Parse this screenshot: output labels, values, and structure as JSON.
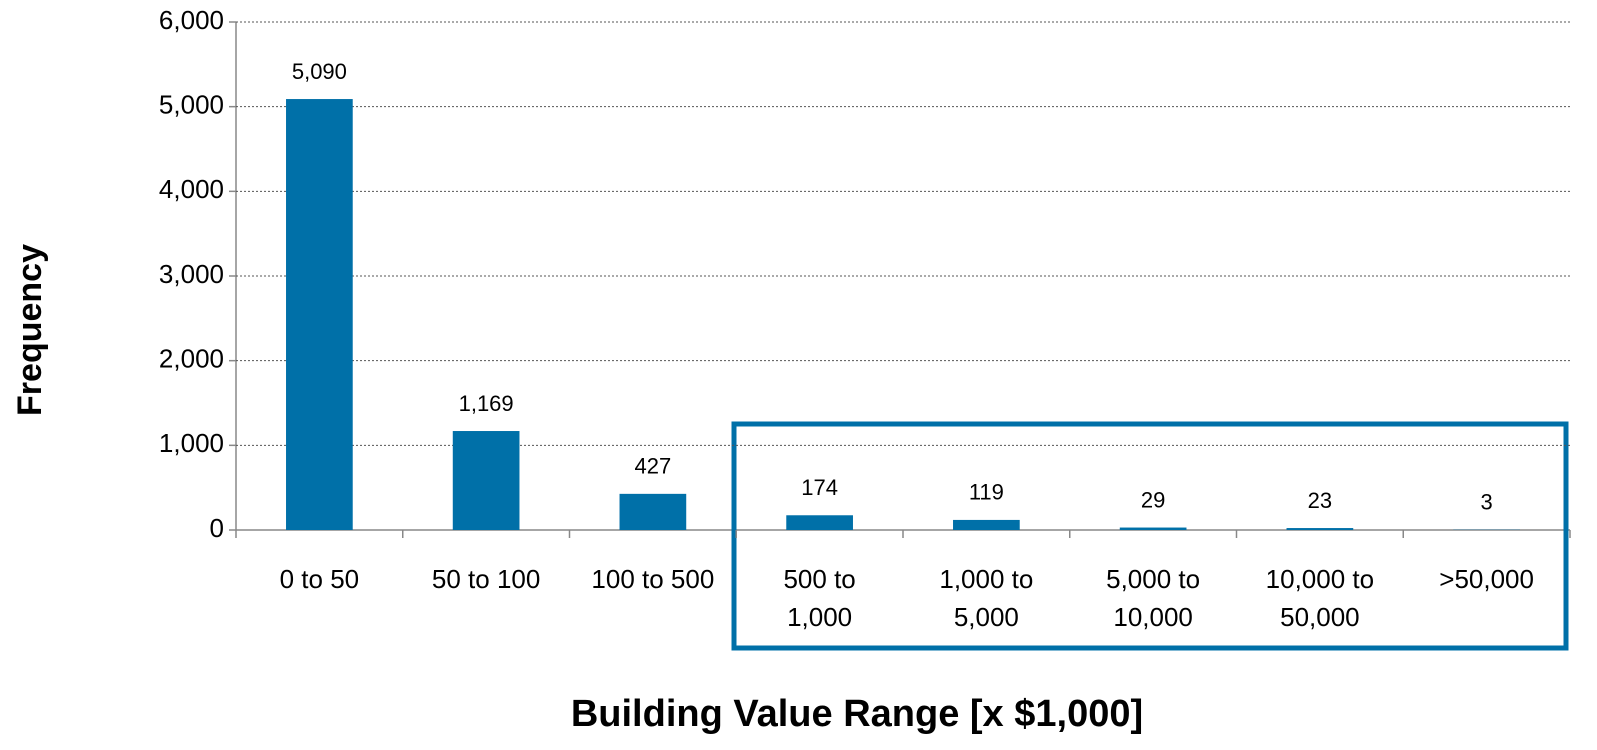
{
  "chart_data": {
    "type": "bar",
    "xlabel": "Building Value Range [x $1,000]",
    "ylabel": "Frequency",
    "categories": [
      "0 to 50",
      "50 to 100",
      "100 to 500",
      "500 to 1,000",
      "1,000 to 5,000",
      "5,000 to 10,000",
      "10,000 to 50,000",
      ">50,000"
    ],
    "values": [
      5090,
      1169,
      427,
      174,
      119,
      29,
      23,
      3
    ],
    "value_labels": [
      "5,090",
      "1,169",
      "427",
      "174",
      "119",
      "29",
      "23",
      "3"
    ],
    "color": "#0070a8",
    "ylim": [
      0,
      6000
    ],
    "yticks": [
      0,
      {
        "value": 1000,
        "label": "1,000"
      },
      {
        "value": 2000,
        "label": "2,000"
      },
      {
        "value": 3000,
        "label": "3,000"
      },
      {
        "value": 4000,
        "label": "4,000"
      },
      {
        "value": 5000,
        "label": "5,000"
      },
      {
        "value": 6000,
        "label": "6,000"
      }
    ],
    "grid": true
  }
}
